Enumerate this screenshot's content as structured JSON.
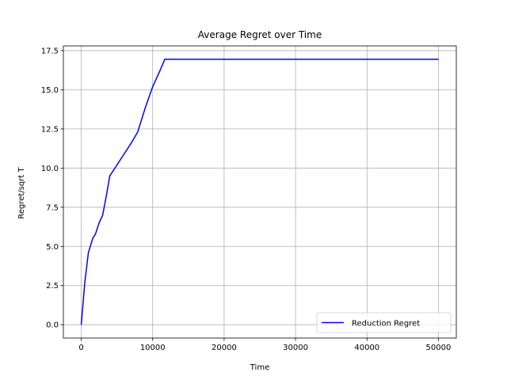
{
  "chart_data": {
    "type": "line",
    "title": "Average Regret over Time",
    "xlabel": "Time",
    "ylabel": "Regret/sqrt T",
    "xlim": [
      -2500,
      52500
    ],
    "ylim": [
      -0.85,
      17.8
    ],
    "xticks": [
      0,
      10000,
      20000,
      30000,
      40000,
      50000
    ],
    "xtick_labels": [
      "0",
      "10000",
      "20000",
      "30000",
      "40000",
      "50000"
    ],
    "yticks": [
      0.0,
      2.5,
      5.0,
      7.5,
      10.0,
      12.5,
      15.0,
      17.5
    ],
    "ytick_labels": [
      "0.0",
      "2.5",
      "5.0",
      "7.5",
      "10.0",
      "12.5",
      "15.0",
      "17.5"
    ],
    "grid": true,
    "legend": {
      "position": "lower-right"
    },
    "series": [
      {
        "name": "Reduction Regret",
        "color": "#0000ff",
        "x": [
          0,
          500,
          1000,
          1600,
          2000,
          2500,
          3000,
          3500,
          4000,
          5000,
          6000,
          7000,
          7900,
          9000,
          10000,
          11000,
          11700,
          20000,
          30000,
          40000,
          50000
        ],
        "y": [
          0.0,
          2.7,
          4.6,
          5.5,
          5.8,
          6.5,
          7.0,
          8.2,
          9.5,
          10.2,
          10.9,
          11.6,
          12.3,
          13.9,
          15.2,
          16.2,
          16.95,
          16.95,
          16.95,
          16.95,
          16.95
        ]
      }
    ]
  }
}
